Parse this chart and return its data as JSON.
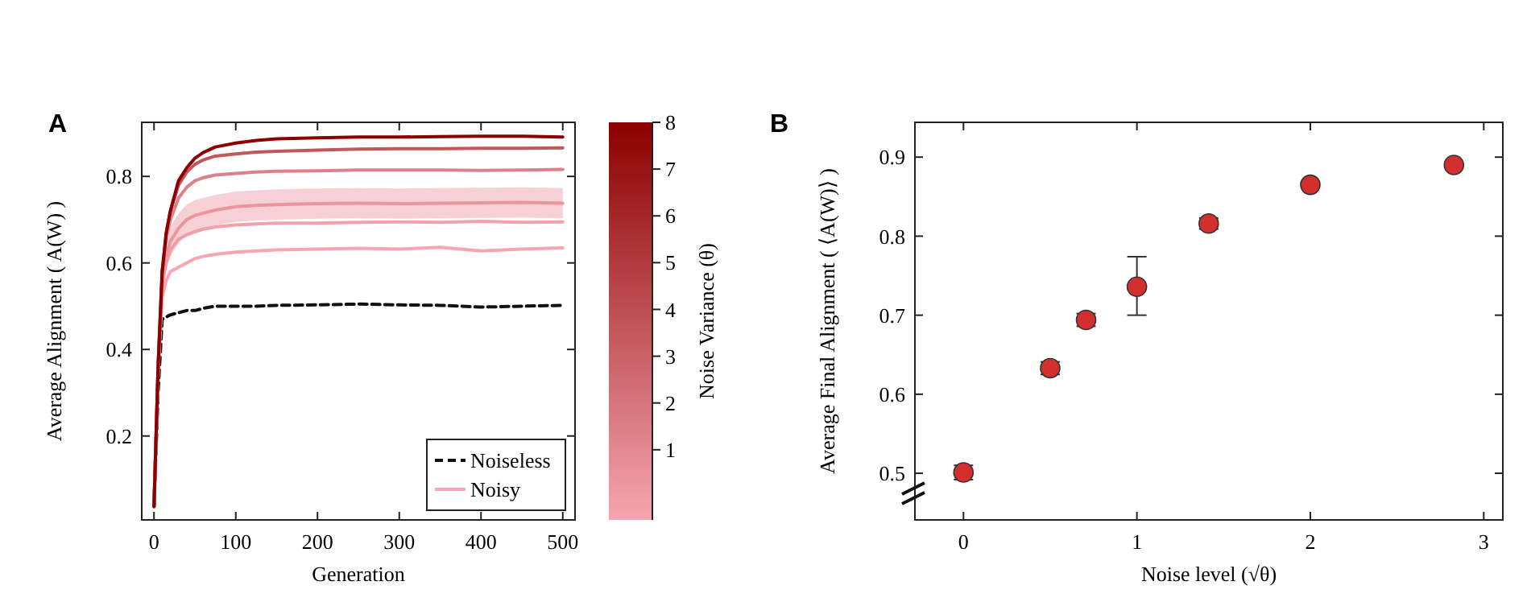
{
  "chart_data": [
    {
      "type": "line",
      "title": "A",
      "xlabel": "Generation",
      "ylabel": "Average Alignment ( A(W) )",
      "clabel": "Noise Variance (θ)",
      "x": [
        0,
        5,
        10,
        15,
        20,
        30,
        40,
        50,
        60,
        75,
        100,
        125,
        150,
        200,
        250,
        300,
        350,
        400,
        450,
        500
      ],
      "xlim": [
        -15,
        515
      ],
      "xticks": [
        0,
        100,
        200,
        300,
        400,
        500
      ],
      "ylim": [
        0.006,
        0.925
      ],
      "yticks": [
        0.2,
        0.4,
        0.6,
        0.8
      ],
      "clim": [
        -0.5,
        8
      ],
      "cticks": [
        1,
        2,
        3,
        4,
        5,
        6,
        7,
        8
      ],
      "legend": "bottom right",
      "series": [
        {
          "name": "Noiseless",
          "color": "#111111",
          "line_style": "dashed",
          "values": [
            0.037,
            0.3,
            0.47,
            0.475,
            0.48,
            0.485,
            0.49,
            0.49,
            0.495,
            0.5,
            0.5,
            0.5,
            0.502,
            0.503,
            0.505,
            0.503,
            0.502,
            0.498,
            0.5,
            0.502
          ]
        },
        {
          "name": "Noisy",
          "color": "#f5a6b0",
          "values": [
            0.037,
            0.35,
            0.52,
            0.56,
            0.58,
            0.59,
            0.6,
            0.61,
            0.615,
            0.62,
            0.625,
            0.628,
            0.63,
            0.632,
            0.634,
            0.632,
            0.636,
            0.628,
            0.632,
            0.635
          ]
        },
        {
          "color": "#f1a1aa",
          "values": [
            0.037,
            0.35,
            0.55,
            0.6,
            0.63,
            0.655,
            0.665,
            0.672,
            0.678,
            0.683,
            0.688,
            0.69,
            0.692,
            0.692,
            0.694,
            0.695,
            0.694,
            0.696,
            0.694,
            0.695
          ]
        },
        {
          "color": "#eb969f",
          "values": [
            0.037,
            0.35,
            0.56,
            0.62,
            0.65,
            0.68,
            0.7,
            0.71,
            0.715,
            0.722,
            0.73,
            0.733,
            0.735,
            0.737,
            0.738,
            0.737,
            0.738,
            0.739,
            0.74,
            0.738
          ],
          "lower": [
            0.037,
            0.33,
            0.53,
            0.59,
            0.615,
            0.645,
            0.665,
            0.675,
            0.68,
            0.687,
            0.695,
            0.698,
            0.7,
            0.702,
            0.703,
            0.702,
            0.703,
            0.704,
            0.705,
            0.703
          ],
          "upper": [
            0.037,
            0.37,
            0.59,
            0.65,
            0.685,
            0.715,
            0.735,
            0.745,
            0.75,
            0.757,
            0.765,
            0.768,
            0.77,
            0.772,
            0.773,
            0.772,
            0.773,
            0.774,
            0.775,
            0.773
          ]
        },
        {
          "color": "#dd8088",
          "values": [
            0.037,
            0.36,
            0.58,
            0.66,
            0.7,
            0.75,
            0.775,
            0.79,
            0.797,
            0.803,
            0.807,
            0.81,
            0.812,
            0.813,
            0.815,
            0.815,
            0.815,
            0.814,
            0.815,
            0.816
          ]
        },
        {
          "color": "#c2565b",
          "values": [
            0.037,
            0.36,
            0.58,
            0.67,
            0.72,
            0.78,
            0.81,
            0.828,
            0.838,
            0.847,
            0.852,
            0.856,
            0.858,
            0.861,
            0.863,
            0.864,
            0.864,
            0.865,
            0.865,
            0.866
          ]
        },
        {
          "color": "#8b0000",
          "values": [
            0.037,
            0.36,
            0.58,
            0.67,
            0.72,
            0.79,
            0.82,
            0.842,
            0.855,
            0.868,
            0.877,
            0.883,
            0.887,
            0.889,
            0.891,
            0.891,
            0.892,
            0.893,
            0.893,
            0.891
          ]
        }
      ]
    },
    {
      "type": "scatter",
      "title": "B",
      "xlabel": "Noise level (√θ)",
      "ylabel": "Average Final Alignment ( ⟨A(W)⟩ )",
      "marker": "circle",
      "x": [
        0,
        0.5,
        0.707,
        1,
        1.414,
        2,
        2.828
      ],
      "xlim": [
        -0.28,
        3.11
      ],
      "xticks": [
        0,
        1,
        2,
        3
      ],
      "ylim": [
        0.441,
        0.944
      ],
      "yticks": [
        0.5,
        0.6,
        0.7,
        0.8,
        0.9
      ],
      "series": [
        {
          "color": "#d32f2f",
          "values": [
            0.501,
            0.633,
            0.694,
            0.736,
            0.816,
            0.865,
            0.89
          ],
          "errors": [
            0.009,
            0.008,
            0.008,
            [
              0.7,
              0.774
            ],
            0.007,
            null,
            null
          ]
        }
      ]
    }
  ]
}
